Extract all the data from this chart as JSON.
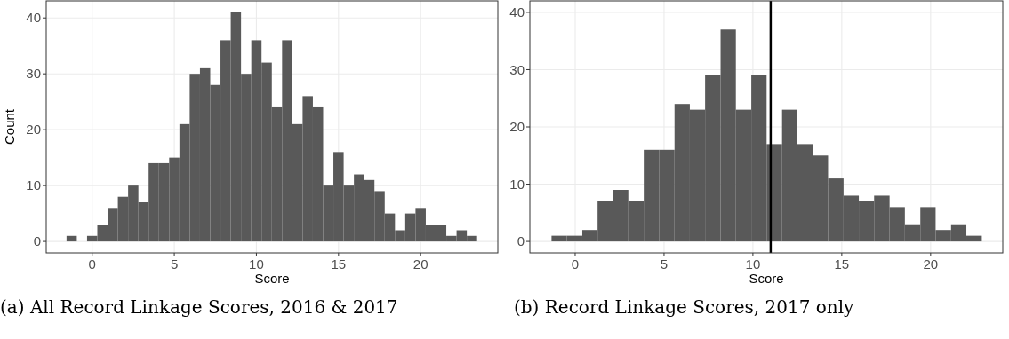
{
  "chart_data": [
    {
      "type": "histogram",
      "title": "(a) All Record Linkage Scores, 2016 & 2017",
      "xlabel": "Score",
      "ylabel": "Count",
      "bins": [
        -1.5625,
        -0.9375,
        -0.3125,
        0.3125,
        0.9375,
        1.5625,
        2.1875,
        2.8125,
        3.4375,
        4.0625,
        4.6875,
        5.3125,
        5.9375,
        6.5625,
        7.1875,
        7.8125,
        8.4375,
        9.0625,
        9.6875,
        10.3125,
        10.9375,
        11.5625,
        12.1875,
        12.8125,
        13.4375,
        14.0625,
        14.6875,
        15.3125,
        15.9375,
        16.5625,
        17.1875,
        17.8125,
        18.4375,
        19.0625,
        19.6875,
        20.3125,
        20.9375,
        21.5625,
        22.1875,
        22.8125,
        23.4375
      ],
      "values": [
        1,
        0,
        1,
        3,
        6,
        8,
        10,
        7,
        14,
        14,
        15,
        21,
        30,
        31,
        28,
        36,
        41,
        30,
        36,
        32,
        24,
        36,
        21,
        26,
        24,
        10,
        16,
        10,
        12,
        11,
        9,
        5,
        2,
        5,
        6,
        3,
        3,
        1,
        2,
        1
      ],
      "color": "#595959",
      "xlim": [
        -2.8,
        24.7
      ],
      "xticks": [
        0,
        5,
        10,
        15,
        20
      ],
      "ylim": [
        -2.05,
        43.05
      ],
      "yticks": [
        0,
        10,
        20,
        30,
        40
      ],
      "grid": true
    },
    {
      "type": "histogram",
      "title": "(b) Record Linkage Scores, 2017 only",
      "xlabel": "Score",
      "bins": [
        -1.33,
        -0.47,
        0.4,
        1.26,
        2.13,
        2.99,
        3.86,
        4.72,
        5.59,
        6.45,
        7.31,
        8.18,
        9.04,
        9.91,
        10.77,
        11.64,
        12.5,
        13.37,
        14.23,
        15.1,
        15.96,
        16.82,
        17.69,
        18.55,
        19.42,
        20.28,
        21.15,
        22.01,
        22.88
      ],
      "values": [
        1,
        1,
        2,
        7,
        9,
        7,
        16,
        16,
        24,
        23,
        29,
        37,
        23,
        29,
        17,
        23,
        17,
        15,
        11,
        8,
        7,
        8,
        6,
        3,
        6,
        2,
        3,
        1
      ],
      "color": "#595959",
      "xlim": [
        -2.55,
        24.06
      ],
      "xticks": [
        0,
        5,
        10,
        15,
        20
      ],
      "ylim": [
        -2,
        42
      ],
      "yticks": [
        0,
        10,
        20,
        30,
        40
      ],
      "grid": true,
      "ref_lines": [
        {
          "axis": "x",
          "value": 11,
          "color": "#000000"
        }
      ]
    }
  ]
}
